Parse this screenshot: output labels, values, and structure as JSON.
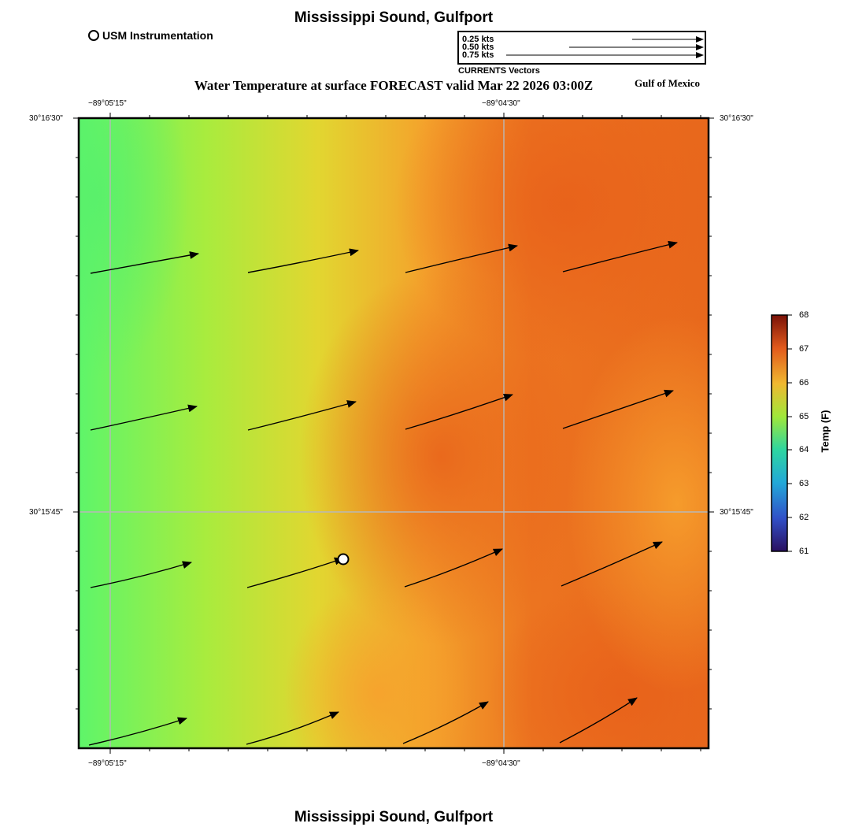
{
  "map": {
    "title_top": "Mississippi Sound, Gulfport",
    "title_bottom": "Mississippi Sound, Gulfport",
    "forecast_title": "Water Temperature at surface FORECAST valid Mar 22 2026 03:00Z",
    "region_label": "Gulf of Mexico"
  },
  "station_legend": {
    "label": "USM Instrumentation"
  },
  "vector_legend": {
    "entries": [
      "0.25 kts",
      "0.50 kts",
      "0.75 kts"
    ],
    "caption": "CURRENTS Vectors"
  },
  "axes": {
    "x_ticks": [
      "−89°05'15\"",
      "−89°04'30\""
    ],
    "y_ticks": [
      "30°16'30\"",
      "30°15'45\""
    ]
  },
  "colorbar": {
    "title": "Temp (F)",
    "ticks": [
      "68",
      "67",
      "66",
      "65",
      "64",
      "63",
      "62",
      "61"
    ],
    "min": 61,
    "max": 68
  },
  "colors": {
    "cool": "#5ef56a",
    "mid": "#e0d832",
    "warm": "#f4a030",
    "hot": "#e8661c"
  }
}
